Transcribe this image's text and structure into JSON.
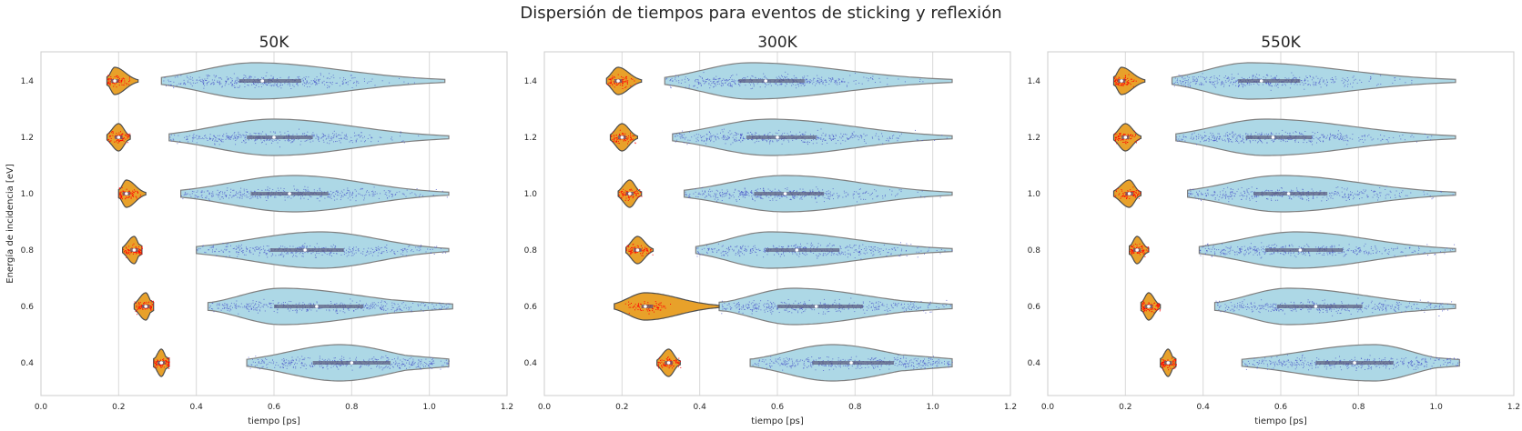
{
  "figure": {
    "title": "Dispersión de tiempos para eventos de sticking y reflexión",
    "colors": {
      "reflection_fill": "#add8e6",
      "reflection_edge": "#7f7f7f",
      "reflection_points": "#4a55c8",
      "sticking_fill": "#e8a12a",
      "sticking_edge": "#4d4d4d",
      "sticking_points": "#ff0000",
      "grid": "#d9d9d9",
      "box": "#5a5a7a"
    }
  },
  "chart_data": [
    {
      "type": "violin",
      "title": "50K",
      "xlabel": "tiempo [ps]",
      "ylabel": "Energía de incidencia [eV]",
      "xlim": [
        0.0,
        1.2
      ],
      "xticks": [
        "0.0",
        "0.2",
        "0.4",
        "0.6",
        "0.8",
        "1.0",
        "1.2"
      ],
      "categories": [
        "1.4",
        "1.2",
        "1.0",
        "0.8",
        "0.6",
        "0.4"
      ],
      "grid": "vertical",
      "series": [
        {
          "kind": "reflection",
          "values": [
            {
              "energy": "1.4",
              "min": 0.31,
              "q1": 0.51,
              "median": 0.57,
              "q3": 0.67,
              "max": 1.04,
              "peak": 0.55
            },
            {
              "energy": "1.2",
              "min": 0.33,
              "q1": 0.53,
              "median": 0.6,
              "q3": 0.7,
              "max": 1.05,
              "peak": 0.6
            },
            {
              "energy": "1.0",
              "min": 0.36,
              "q1": 0.54,
              "median": 0.64,
              "q3": 0.74,
              "max": 1.05,
              "peak": 0.65
            },
            {
              "energy": "0.8",
              "min": 0.4,
              "q1": 0.59,
              "median": 0.68,
              "q3": 0.78,
              "max": 1.05,
              "peak": 0.72
            },
            {
              "energy": "0.6",
              "min": 0.43,
              "q1": 0.6,
              "median": 0.71,
              "q3": 0.83,
              "max": 1.06,
              "peak": 0.62
            },
            {
              "energy": "0.4",
              "min": 0.53,
              "q1": 0.7,
              "median": 0.8,
              "q3": 0.9,
              "max": 1.05,
              "peak": 0.77
            }
          ]
        },
        {
          "kind": "sticking",
          "values": [
            {
              "energy": "1.4",
              "min": 0.17,
              "q1": 0.18,
              "median": 0.19,
              "q3": 0.2,
              "max": 0.25,
              "peak": 0.19
            },
            {
              "energy": "1.2",
              "min": 0.17,
              "q1": 0.19,
              "median": 0.2,
              "q3": 0.21,
              "max": 0.23,
              "peak": 0.2
            },
            {
              "energy": "1.0",
              "min": 0.2,
              "q1": 0.21,
              "median": 0.22,
              "q3": 0.23,
              "max": 0.27,
              "peak": 0.22
            },
            {
              "energy": "0.8",
              "min": 0.21,
              "q1": 0.23,
              "median": 0.24,
              "q3": 0.25,
              "max": 0.26,
              "peak": 0.24
            },
            {
              "energy": "0.6",
              "min": 0.24,
              "q1": 0.26,
              "median": 0.27,
              "q3": 0.28,
              "max": 0.29,
              "peak": 0.27
            },
            {
              "energy": "0.4",
              "min": 0.29,
              "q1": 0.3,
              "median": 0.31,
              "q3": 0.32,
              "max": 0.33,
              "peak": 0.31
            }
          ]
        }
      ]
    },
    {
      "type": "violin",
      "title": "300K",
      "xlabel": "tiempo [ps]",
      "ylabel": "",
      "xlim": [
        0.0,
        1.2
      ],
      "xticks": [
        "0.0",
        "0.2",
        "0.4",
        "0.6",
        "0.8",
        "1.0",
        "1.2"
      ],
      "categories": [
        "1.4",
        "1.2",
        "1.0",
        "0.8",
        "0.6",
        "0.4"
      ],
      "grid": "vertical",
      "series": [
        {
          "kind": "reflection",
          "values": [
            {
              "energy": "1.4",
              "min": 0.31,
              "q1": 0.5,
              "median": 0.57,
              "q3": 0.67,
              "max": 1.05,
              "peak": 0.53
            },
            {
              "energy": "1.2",
              "min": 0.33,
              "q1": 0.52,
              "median": 0.6,
              "q3": 0.7,
              "max": 1.05,
              "peak": 0.58
            },
            {
              "energy": "1.0",
              "min": 0.36,
              "q1": 0.54,
              "median": 0.62,
              "q3": 0.72,
              "max": 1.05,
              "peak": 0.62
            },
            {
              "energy": "0.8",
              "min": 0.39,
              "q1": 0.57,
              "median": 0.65,
              "q3": 0.76,
              "max": 1.05,
              "peak": 0.58
            },
            {
              "energy": "0.6",
              "min": 0.45,
              "q1": 0.6,
              "median": 0.7,
              "q3": 0.82,
              "max": 1.05,
              "peak": 0.64
            },
            {
              "energy": "0.4",
              "min": 0.53,
              "q1": 0.69,
              "median": 0.79,
              "q3": 0.9,
              "max": 1.05,
              "peak": 0.74
            }
          ]
        },
        {
          "kind": "sticking",
          "values": [
            {
              "energy": "1.4",
              "min": 0.16,
              "q1": 0.18,
              "median": 0.19,
              "q3": 0.2,
              "max": 0.25,
              "peak": 0.19
            },
            {
              "energy": "1.2",
              "min": 0.17,
              "q1": 0.19,
              "median": 0.2,
              "q3": 0.21,
              "max": 0.24,
              "peak": 0.2
            },
            {
              "energy": "1.0",
              "min": 0.19,
              "q1": 0.21,
              "median": 0.22,
              "q3": 0.23,
              "max": 0.25,
              "peak": 0.22
            },
            {
              "energy": "0.8",
              "min": 0.21,
              "q1": 0.23,
              "median": 0.24,
              "q3": 0.25,
              "max": 0.28,
              "peak": 0.24
            },
            {
              "energy": "0.6",
              "min": 0.18,
              "q1": 0.25,
              "median": 0.26,
              "q3": 0.28,
              "max": 0.45,
              "peak": 0.26
            },
            {
              "energy": "0.4",
              "min": 0.29,
              "q1": 0.31,
              "median": 0.32,
              "q3": 0.33,
              "max": 0.35,
              "peak": 0.32
            }
          ]
        }
      ]
    },
    {
      "type": "violin",
      "title": "550K",
      "xlabel": "tiempo [ps]",
      "ylabel": "",
      "xlim": [
        0.0,
        1.2
      ],
      "xticks": [
        "0.0",
        "0.2",
        "0.4",
        "0.6",
        "0.8",
        "1.0",
        "1.2"
      ],
      "categories": [
        "1.4",
        "1.2",
        "1.0",
        "0.8",
        "0.6",
        "0.4"
      ],
      "grid": "vertical",
      "series": [
        {
          "kind": "reflection",
          "values": [
            {
              "energy": "1.4",
              "min": 0.32,
              "q1": 0.49,
              "median": 0.55,
              "q3": 0.65,
              "max": 1.05,
              "peak": 0.52
            },
            {
              "energy": "1.2",
              "min": 0.33,
              "q1": 0.51,
              "median": 0.58,
              "q3": 0.68,
              "max": 1.05,
              "peak": 0.56
            },
            {
              "energy": "1.0",
              "min": 0.36,
              "q1": 0.53,
              "median": 0.62,
              "q3": 0.72,
              "max": 1.05,
              "peak": 0.6
            },
            {
              "energy": "0.8",
              "min": 0.39,
              "q1": 0.56,
              "median": 0.65,
              "q3": 0.76,
              "max": 1.05,
              "peak": 0.64
            },
            {
              "energy": "0.6",
              "min": 0.43,
              "q1": 0.59,
              "median": 0.69,
              "q3": 0.81,
              "max": 1.05,
              "peak": 0.62
            },
            {
              "energy": "0.4",
              "min": 0.5,
              "q1": 0.69,
              "median": 0.79,
              "q3": 0.89,
              "max": 1.06,
              "peak": 0.84
            }
          ]
        },
        {
          "kind": "sticking",
          "values": [
            {
              "energy": "1.4",
              "min": 0.17,
              "q1": 0.18,
              "median": 0.19,
              "q3": 0.2,
              "max": 0.25,
              "peak": 0.19
            },
            {
              "energy": "1.2",
              "min": 0.17,
              "q1": 0.19,
              "median": 0.2,
              "q3": 0.21,
              "max": 0.24,
              "peak": 0.2
            },
            {
              "energy": "1.0",
              "min": 0.17,
              "q1": 0.2,
              "median": 0.21,
              "q3": 0.22,
              "max": 0.24,
              "peak": 0.21
            },
            {
              "energy": "0.8",
              "min": 0.21,
              "q1": 0.22,
              "median": 0.23,
              "q3": 0.24,
              "max": 0.26,
              "peak": 0.23
            },
            {
              "energy": "0.6",
              "min": 0.24,
              "q1": 0.25,
              "median": 0.26,
              "q3": 0.27,
              "max": 0.29,
              "peak": 0.26
            },
            {
              "energy": "0.4",
              "min": 0.29,
              "q1": 0.3,
              "median": 0.31,
              "q3": 0.32,
              "max": 0.33,
              "peak": 0.31
            }
          ]
        }
      ]
    }
  ]
}
